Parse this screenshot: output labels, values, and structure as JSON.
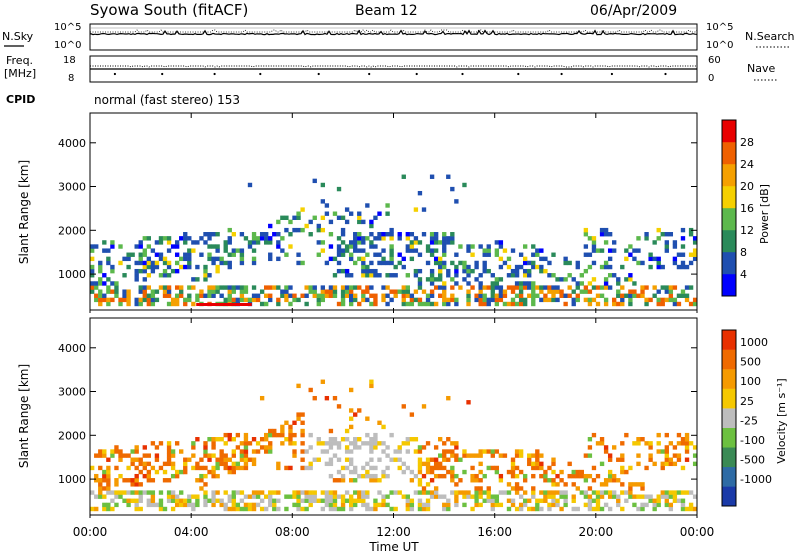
{
  "header": {
    "station": "Syowa South (fitACF)",
    "beam": "Beam 12",
    "date": "06/Apr/2009"
  },
  "noise_panel": {
    "left_label": "N.Sky",
    "right_label": "N.Search",
    "left_ticks": [
      "10^5",
      "10^0"
    ],
    "right_ticks": [
      "10^5",
      "10^0"
    ]
  },
  "freq_panel": {
    "left_label_1": "Freq.",
    "left_label_2": "[MHz]",
    "right_label": "Nave",
    "left_ticks": [
      "18",
      "8"
    ],
    "right_ticks": [
      "60",
      "0"
    ]
  },
  "cpid": {
    "label": "CPID",
    "value": "normal (fast stereo) 153"
  },
  "chart_data": [
    {
      "type": "heatmap",
      "name": "power",
      "ylabel": "Slant Range [km]",
      "yticks": [
        "4000",
        "3000",
        "2000",
        "1000"
      ],
      "colorbar_label": "Power [dB]",
      "colorbar_ticks": [
        "28",
        "24",
        "20",
        "16",
        "12",
        "8",
        "4"
      ],
      "colors": [
        "#0000ff",
        "#1f4fb0",
        "#2a8a5a",
        "#5cb84c",
        "#f5d000",
        "#f5a000",
        "#ef6000",
        "#e80000"
      ]
    },
    {
      "type": "heatmap",
      "name": "velocity",
      "ylabel": "Slant Range [km]",
      "yticks": [
        "4000",
        "3000",
        "2000",
        "1000"
      ],
      "colorbar_label": "Velocity [m s⁻¹]",
      "colorbar_ticks": [
        "1000",
        "500",
        "100",
        "25",
        "-25",
        "-100",
        "-500",
        "-1000"
      ],
      "colors": [
        "#1a3aa8",
        "#2e6ba5",
        "#3a8a55",
        "#6cc040",
        "#bdbdbd",
        "#f5c800",
        "#f59a00",
        "#ef6a00",
        "#e83000"
      ]
    }
  ],
  "xaxis": {
    "label": "Time UT",
    "ticks": [
      "00:00",
      "04:00",
      "08:00",
      "12:00",
      "16:00",
      "20:00",
      "00:00"
    ]
  }
}
